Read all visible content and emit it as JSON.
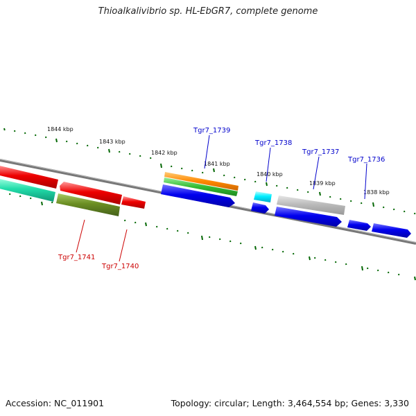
{
  "header": {
    "title": "Thioalkalivibrio sp. HL-EbGR7, complete genome"
  },
  "footer": {
    "accession": "Accession: NC_011901",
    "summary": "Topology: circular; Length: 3,464,554 bp; Genes: 3,330"
  },
  "axis": {
    "tick_labels": [
      "1844 kbp",
      "1843 kbp",
      "1842 kbp",
      "1841 kbp",
      "1840 kbp",
      "1839 kbp",
      "1838 kbp"
    ]
  },
  "genes": {
    "labels": {
      "tgr7_1739": "Tgr7_1739",
      "tgr7_1738": "Tgr7_1738",
      "tgr7_1737": "Tgr7_1737",
      "tgr7_1736": "Tgr7_1736",
      "tgr7_1741": "Tgr7_1741",
      "tgr7_1740": "Tgr7_1740"
    },
    "colors": {
      "blue_label": "#0000cc",
      "red_label": "#cc0000",
      "red": "#ee0000",
      "teal": "#22ddaa",
      "olive": "#6b8e23",
      "orange": "#ff8800",
      "green": "#33bb33",
      "blue": "#0000ee",
      "cyan": "#00eeff",
      "gray": "#bbbbbb",
      "backbone": "#777777",
      "tick": "#006600"
    }
  }
}
